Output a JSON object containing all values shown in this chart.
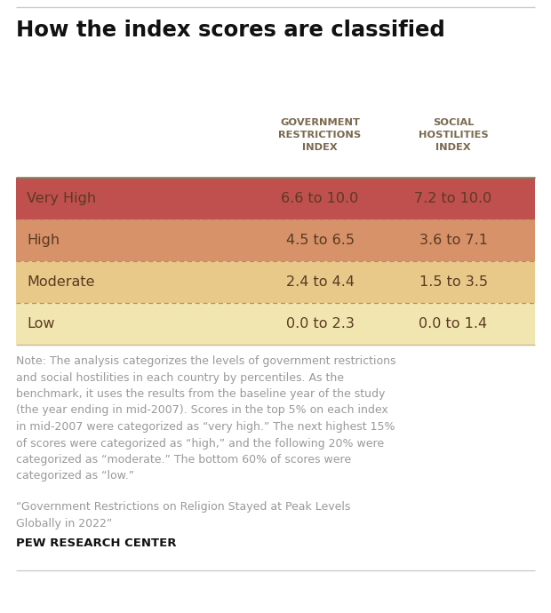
{
  "title": "How the index scores are classified",
  "col_headers": [
    "GOVERNMENT\nRESTRICTIONS\nINDEX",
    "SOCIAL\nHOSTILITIES\nINDEX"
  ],
  "rows": [
    {
      "label": "Very High",
      "gri": "6.6 to 10.0",
      "shi": "7.2 to 10.0",
      "color": "#C0504D"
    },
    {
      "label": "High",
      "gri": "4.5 to 6.5",
      "shi": "3.6 to 7.1",
      "color": "#D8926A"
    },
    {
      "label": "Moderate",
      "gri": "2.4 to 4.4",
      "shi": "1.5 to 3.5",
      "color": "#E8C98A"
    },
    {
      "label": "Low",
      "gri": "0.0 to 2.3",
      "shi": "0.0 to 1.4",
      "color": "#F2E6B0"
    }
  ],
  "note_text": "Note: The analysis categorizes the levels of government restrictions\nand social hostilities in each country by percentiles. As the\nbenchmark, it uses the results from the baseline year of the study\n(the year ending in mid-2007). Scores in the top 5% on each index\nin mid-2007 were categorized as “very high.” The next highest 15%\nof scores were categorized as “high,” and the following 20% were\ncategorized as “moderate.” The bottom 60% of scores were\ncategorized as “low.”",
  "source_text": "“Government Restrictions on Religion Stayed at Peak Levels\nGlobally in 2022”",
  "branding": "PEW RESEARCH CENTER",
  "bg_color": "#FFFFFF",
  "header_text_color": "#7A6A50",
  "row_label_color": "#5A3A20",
  "row_value_color": "#5A3A20",
  "note_color": "#999999",
  "source_color": "#999999",
  "brand_color": "#111111",
  "dotted_line_color": "#B09070",
  "title_color": "#111111",
  "top_border_color": "#8B7355",
  "bottom_border_color": "#C8B898"
}
